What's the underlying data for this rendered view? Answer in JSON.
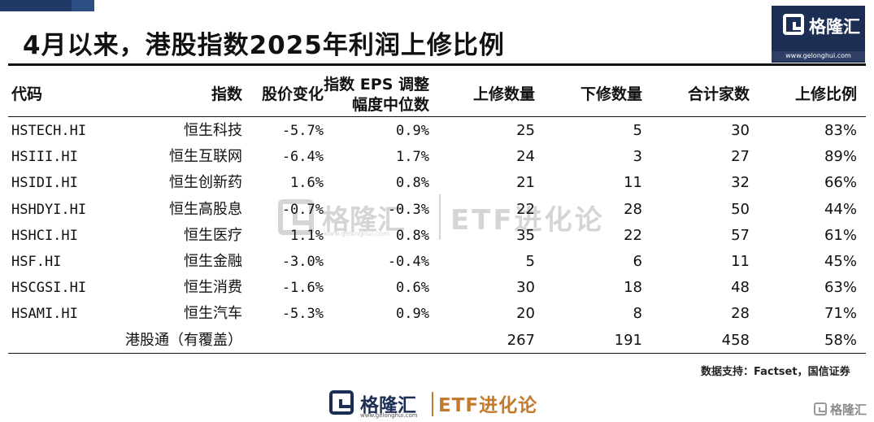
{
  "title": "4月以来，港股指数2025年利润上修比例",
  "brand": {
    "name": "格隆汇",
    "url": "www.gelonghui.com"
  },
  "watermark": {
    "name": "格隆汇",
    "url": "www.gelonghui.com",
    "tag": "ETF进化论"
  },
  "footer": {
    "name": "格隆汇",
    "url": "www.gelonghui.com",
    "tag": "ETF进化论"
  },
  "corner_watermark": "格隆汇",
  "source": "数据支持：Factset，国信证券",
  "colors": {
    "navy": "#1d2e55",
    "accent_orange": "#c47a2c"
  },
  "table": {
    "headers": {
      "code": "代码",
      "index": "指数",
      "price_change": "股价变化",
      "eps_line1": "指数 EPS 调整",
      "eps_line2": "幅度中位数",
      "up": "上修数量",
      "down": "下修数量",
      "total": "合计家数",
      "ratio": "上修比例"
    },
    "rows": [
      {
        "code": "HSTECH.HI",
        "name": "恒生科技",
        "price_change": "-5.7%",
        "eps": "0.9%",
        "up": "25",
        "down": "5",
        "total": "30",
        "ratio": "83%"
      },
      {
        "code": "HSIII.HI",
        "name": "恒生互联网",
        "price_change": "-6.4%",
        "eps": "1.7%",
        "up": "24",
        "down": "3",
        "total": "27",
        "ratio": "89%"
      },
      {
        "code": "HSIDI.HI",
        "name": "恒生创新药",
        "price_change": "1.6%",
        "eps": "0.8%",
        "up": "21",
        "down": "11",
        "total": "32",
        "ratio": "66%"
      },
      {
        "code": "HSHDYI.HI",
        "name": "恒生高股息",
        "price_change": "-0.7%",
        "eps": "-0.3%",
        "up": "22",
        "down": "28",
        "total": "50",
        "ratio": "44%"
      },
      {
        "code": "HSHCI.HI",
        "name": "恒生医疗",
        "price_change": "1.1%",
        "eps": "0.8%",
        "up": "35",
        "down": "22",
        "total": "57",
        "ratio": "61%"
      },
      {
        "code": "HSF.HI",
        "name": "恒生金融",
        "price_change": "-3.0%",
        "eps": "-0.4%",
        "up": "5",
        "down": "6",
        "total": "11",
        "ratio": "45%"
      },
      {
        "code": "HSCGSI.HI",
        "name": "恒生消费",
        "price_change": "-1.6%",
        "eps": "0.6%",
        "up": "30",
        "down": "18",
        "total": "48",
        "ratio": "63%"
      },
      {
        "code": "HSAMI.HI",
        "name": "恒生汽车",
        "price_change": "-5.3%",
        "eps": "0.9%",
        "up": "20",
        "down": "8",
        "total": "28",
        "ratio": "71%"
      }
    ],
    "summary": {
      "name": "港股通（有覆盖）",
      "up": "267",
      "down": "191",
      "total": "458",
      "ratio": "58%"
    }
  }
}
